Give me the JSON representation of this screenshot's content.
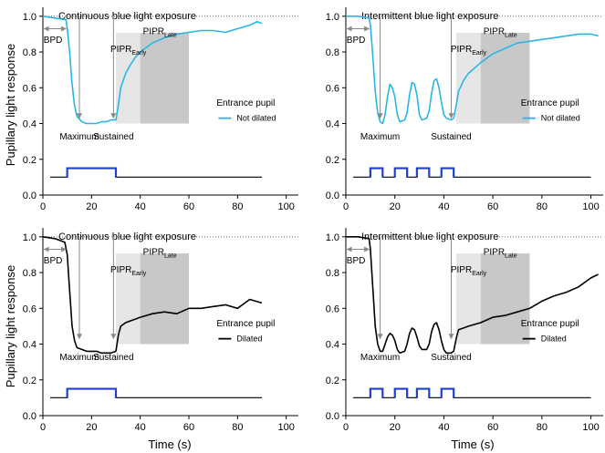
{
  "chart_data": {
    "type": "line",
    "ylabel": "Pupillary light response",
    "xlabel": "Time (s)",
    "ylim": [
      0,
      1.05
    ],
    "yticks": [
      "0.0",
      "0.2",
      "0.4",
      "0.6",
      "0.8",
      "1.0"
    ],
    "panels": [
      {
        "id": "top-left",
        "title": "Continuous blue light exposure",
        "xlim": [
          0,
          105
        ],
        "xticks": [
          "0",
          "20",
          "40",
          "60",
          "80",
          "100"
        ],
        "color": "#29b6e6",
        "legend_title": "Entrance pupil",
        "legend_item": "Not dilated",
        "baseline_reference": 1.0,
        "annotations": {
          "bpd": "BPD",
          "maximum": "Maximum",
          "sustained": "Sustained",
          "pipr": "PIPR",
          "early": "Early",
          "late": "Late"
        },
        "early_window": [
          30,
          40
        ],
        "late_window": [
          40,
          60
        ],
        "stimulus": [
          [
            10,
            30
          ]
        ],
        "x": [
          0,
          5,
          9.5,
          10,
          11,
          12,
          13,
          14,
          16,
          18,
          20,
          22,
          24,
          26,
          28,
          30,
          31,
          32,
          34,
          36,
          38,
          40,
          45,
          50,
          55,
          60,
          65,
          70,
          75,
          80,
          85,
          88,
          90
        ],
        "y": [
          1.0,
          0.99,
          0.98,
          0.93,
          0.8,
          0.62,
          0.5,
          0.44,
          0.41,
          0.4,
          0.4,
          0.4,
          0.41,
          0.41,
          0.42,
          0.42,
          0.5,
          0.6,
          0.68,
          0.73,
          0.77,
          0.8,
          0.85,
          0.88,
          0.9,
          0.91,
          0.92,
          0.92,
          0.91,
          0.93,
          0.95,
          0.97,
          0.96
        ]
      },
      {
        "id": "top-right",
        "title": "Intermittent blue light exposure",
        "xlim": [
          0,
          105
        ],
        "xticks": [
          "0",
          "20",
          "40",
          "60",
          "80",
          "100"
        ],
        "color": "#29b6e6",
        "legend_title": "Entrance pupil",
        "legend_item": "Not dilated",
        "baseline_reference": 1.0,
        "annotations": {
          "bpd": "BPD",
          "maximum": "Maximum",
          "sustained": "Sustained",
          "pipr": "PIPR",
          "early": "Early",
          "late": "Late"
        },
        "early_window": [
          45,
          55
        ],
        "late_window": [
          55,
          75
        ],
        "stimulus": [
          [
            10,
            15
          ],
          [
            20,
            25
          ],
          [
            29,
            34
          ],
          [
            39,
            44
          ]
        ],
        "x": [
          0,
          5,
          9.5,
          10,
          11,
          12,
          13,
          14,
          15,
          16,
          17,
          18,
          19,
          20,
          21,
          22,
          24,
          25,
          26,
          27,
          28,
          29,
          30,
          31,
          33,
          34,
          35,
          36,
          37,
          38,
          39,
          40,
          41,
          43,
          44,
          45,
          46,
          48,
          50,
          55,
          60,
          65,
          70,
          75,
          80,
          85,
          90,
          95,
          100,
          103
        ],
        "y": [
          1.0,
          1.0,
          0.99,
          0.95,
          0.78,
          0.58,
          0.46,
          0.41,
          0.4,
          0.45,
          0.55,
          0.62,
          0.6,
          0.55,
          0.45,
          0.41,
          0.42,
          0.46,
          0.56,
          0.63,
          0.62,
          0.56,
          0.45,
          0.42,
          0.43,
          0.47,
          0.57,
          0.64,
          0.65,
          0.6,
          0.52,
          0.45,
          0.43,
          0.42,
          0.43,
          0.5,
          0.58,
          0.64,
          0.68,
          0.74,
          0.79,
          0.82,
          0.85,
          0.86,
          0.87,
          0.88,
          0.89,
          0.9,
          0.9,
          0.89
        ]
      },
      {
        "id": "bottom-left",
        "title": "Continuous blue light exposure",
        "xlim": [
          0,
          105
        ],
        "xticks": [
          "0",
          "20",
          "40",
          "60",
          "80",
          "100"
        ],
        "color": "#000000",
        "legend_title": "Entrance pupil",
        "legend_item": "Dilated",
        "baseline_reference": 1.0,
        "annotations": {
          "bpd": "BPD",
          "maximum": "Maximum",
          "sustained": "Sustained",
          "pipr": "PIPR",
          "early": "Early",
          "late": "Late"
        },
        "early_window": [
          30,
          40
        ],
        "late_window": [
          40,
          60
        ],
        "stimulus": [
          [
            10,
            30
          ]
        ],
        "x": [
          0,
          5,
          9,
          10,
          11,
          12,
          13,
          14,
          16,
          18,
          20,
          22,
          24,
          26,
          28,
          30,
          31,
          32,
          34,
          36,
          38,
          40,
          45,
          50,
          55,
          60,
          65,
          70,
          75,
          80,
          85,
          90
        ],
        "y": [
          1.0,
          0.99,
          0.97,
          0.9,
          0.7,
          0.5,
          0.42,
          0.38,
          0.37,
          0.36,
          0.36,
          0.36,
          0.35,
          0.35,
          0.35,
          0.36,
          0.45,
          0.5,
          0.52,
          0.53,
          0.54,
          0.55,
          0.57,
          0.58,
          0.57,
          0.6,
          0.6,
          0.61,
          0.62,
          0.6,
          0.65,
          0.63
        ]
      },
      {
        "id": "bottom-right",
        "title": "Intermittent blue light exposure",
        "xlim": [
          0,
          105
        ],
        "xticks": [
          "0",
          "20",
          "40",
          "60",
          "80",
          "100"
        ],
        "color": "#000000",
        "legend_title": "Entrance pupil",
        "legend_item": "Dilated",
        "baseline_reference": 1.0,
        "annotations": {
          "bpd": "BPD",
          "maximum": "Maximum",
          "sustained": "Sustained",
          "pipr": "PIPR",
          "early": "Early",
          "late": "Late"
        },
        "early_window": [
          45,
          55
        ],
        "late_window": [
          55,
          75
        ],
        "stimulus": [
          [
            10,
            15
          ],
          [
            20,
            25
          ],
          [
            29,
            34
          ],
          [
            39,
            44
          ]
        ],
        "x": [
          0,
          5,
          9.5,
          10,
          11,
          12,
          13,
          14,
          15,
          16,
          17,
          18,
          19,
          20,
          21,
          22,
          24,
          25,
          26,
          27,
          28,
          29,
          30,
          31,
          33,
          34,
          35,
          36,
          37,
          38,
          39,
          40,
          41,
          43,
          44,
          45,
          46,
          48,
          50,
          55,
          60,
          65,
          70,
          75,
          80,
          85,
          90,
          95,
          100,
          103
        ],
        "y": [
          1.0,
          1.0,
          0.99,
          0.93,
          0.72,
          0.5,
          0.4,
          0.36,
          0.36,
          0.4,
          0.44,
          0.46,
          0.45,
          0.42,
          0.37,
          0.35,
          0.36,
          0.4,
          0.46,
          0.49,
          0.48,
          0.44,
          0.39,
          0.37,
          0.37,
          0.4,
          0.47,
          0.51,
          0.52,
          0.48,
          0.42,
          0.37,
          0.35,
          0.35,
          0.36,
          0.43,
          0.48,
          0.49,
          0.5,
          0.52,
          0.55,
          0.56,
          0.58,
          0.6,
          0.64,
          0.67,
          0.69,
          0.72,
          0.77,
          0.79
        ]
      }
    ]
  }
}
